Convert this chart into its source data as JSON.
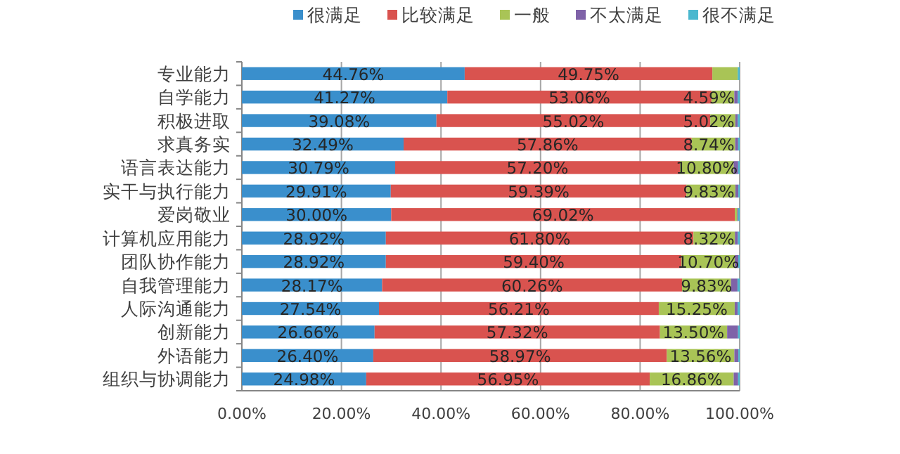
{
  "chart_data": {
    "type": "bar",
    "orientation": "horizontal",
    "stacked": true,
    "categories": [
      "专业能力",
      "自学能力",
      "积极进取",
      "求真务实",
      "语言表达能力",
      "实干与执行能力",
      "爱岗敬业",
      "计算机应用能力",
      "团队协作能力",
      "自我管理能力",
      "人际沟通能力",
      "创新能力",
      "外语能力",
      "组织与协调能力"
    ],
    "series": [
      {
        "name": "很满足",
        "color": "#3a8fcc",
        "values": [
          44.76,
          41.27,
          39.08,
          32.49,
          30.79,
          29.91,
          30.0,
          28.92,
          28.92,
          28.17,
          27.54,
          26.66,
          26.4,
          24.98
        ],
        "value_labels": [
          "44.76%",
          "41.27%",
          "39.08%",
          "32.49%",
          "30.79%",
          "29.91%",
          "30.00%",
          "28.92%",
          "28.92%",
          "28.17%",
          "27.54%",
          "26.66%",
          "26.40%",
          "24.98%"
        ]
      },
      {
        "name": "比较满足",
        "color": "#d9534f",
        "values": [
          49.75,
          53.06,
          55.02,
          57.86,
          57.2,
          59.39,
          69.02,
          61.8,
          59.4,
          60.26,
          56.21,
          57.32,
          58.97,
          56.95
        ],
        "value_labels": [
          "49.75%",
          "53.06%",
          "55.02%",
          "57.86%",
          "57.20%",
          "59.39%",
          "69.02%",
          "61.80%",
          "59.40%",
          "60.26%",
          "56.21%",
          "57.32%",
          "58.97%",
          "56.95%"
        ]
      },
      {
        "name": "一般",
        "color": "#a9c456",
        "values": [
          5.1,
          4.59,
          5.02,
          8.74,
          10.8,
          9.83,
          0.5,
          8.32,
          10.7,
          9.83,
          15.25,
          13.5,
          13.56,
          16.86
        ],
        "value_labels": [
          null,
          "4.59%",
          "5.02%",
          "8.74%",
          "10.80%",
          "9.83%",
          null,
          "8.32%",
          "10.70%",
          "9.83%",
          "15.25%",
          "13.50%",
          "13.56%",
          "16.86%"
        ]
      },
      {
        "name": "不太满足",
        "color": "#7f62a8",
        "values": [
          0,
          0.7,
          0.5,
          0.6,
          0.9,
          0.6,
          0.2,
          0.6,
          0.7,
          1.3,
          0.6,
          2.2,
          0.8,
          0.9
        ]
      },
      {
        "name": "很不满足",
        "color": "#4bb8cf",
        "values": [
          0.39,
          0.38,
          0.38,
          0.31,
          0.31,
          0.27,
          0.28,
          0.36,
          0.28,
          0.44,
          0.4,
          0.32,
          0.27,
          0.31
        ]
      }
    ],
    "xlim": [
      0,
      100
    ],
    "xticks": [
      {
        "value": 0,
        "label": "0.00%"
      },
      {
        "value": 20,
        "label": "20.00%"
      },
      {
        "value": 40,
        "label": "40.00%"
      },
      {
        "value": 60,
        "label": "60.00%"
      },
      {
        "value": 80,
        "label": "80.00%"
      },
      {
        "value": 100,
        "label": "100.00%"
      }
    ],
    "grid": "x",
    "legend": "top"
  }
}
